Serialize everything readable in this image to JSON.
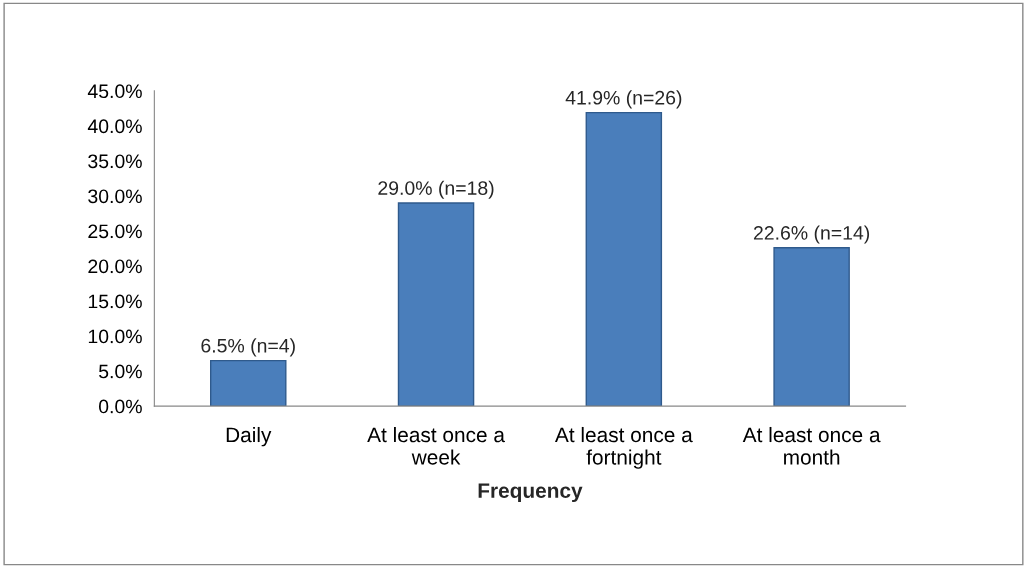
{
  "chart_data": {
    "type": "bar",
    "xlabel": "Frequency",
    "categories": [
      "Daily",
      "At least once a week",
      "At least once a fortnight",
      "At least once a month"
    ],
    "values": [
      6.5,
      29.0,
      41.9,
      22.6
    ],
    "value_labels": [
      "6.5% (n=4)",
      "29.0% (n=18)",
      "41.9% (n=26)",
      "22.6% (n=14)"
    ],
    "color": "#4a7ebb",
    "ylim": [
      0,
      45
    ],
    "yticks": [
      {
        "value": 0,
        "label": "0.0%"
      },
      {
        "value": 5,
        "label": "5.0%"
      },
      {
        "value": 10,
        "label": "10.0%"
      },
      {
        "value": 15,
        "label": "15.0%"
      },
      {
        "value": 20,
        "label": "20.0%"
      },
      {
        "value": 25,
        "label": "25.0%"
      },
      {
        "value": 30,
        "label": "30.0%"
      },
      {
        "value": 35,
        "label": "35.0%"
      },
      {
        "value": 40,
        "label": "40.0%"
      },
      {
        "value": 45,
        "label": "45.0%"
      }
    ],
    "grid": false
  }
}
